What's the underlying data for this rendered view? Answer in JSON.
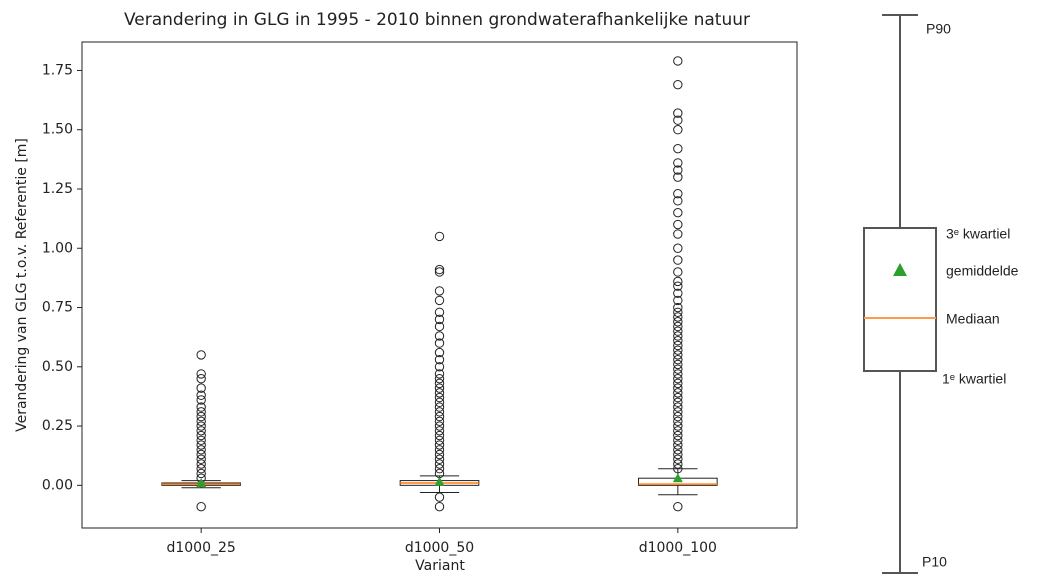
{
  "chart_data": {
    "type": "box",
    "title": "Verandering in GLG in 1995 - 2010 binnen grondwaterafhankelijke natuur",
    "x_label": "Variant",
    "y_label": "Verandering van GLG t.o.v. Referentie [m]",
    "categories": [
      "d1000_25",
      "d1000_50",
      "d1000_100"
    ],
    "boxes": [
      {
        "whislo": -0.01,
        "q1": 0.0,
        "med": 0.005,
        "q3": 0.01,
        "whishi": 0.02,
        "mean": 0.01,
        "fliers": [
          -0.09,
          0.03,
          0.05,
          0.07,
          0.09,
          0.11,
          0.13,
          0.15,
          0.17,
          0.19,
          0.21,
          0.23,
          0.25,
          0.27,
          0.29,
          0.31,
          0.33,
          0.36,
          0.38,
          0.41,
          0.45,
          0.47,
          0.55
        ]
      },
      {
        "whislo": -0.03,
        "q1": 0.0,
        "med": 0.01,
        "q3": 0.02,
        "whishi": 0.04,
        "mean": 0.015,
        "fliers": [
          -0.09,
          -0.05,
          0.05,
          0.07,
          0.09,
          0.11,
          0.13,
          0.15,
          0.17,
          0.19,
          0.21,
          0.23,
          0.25,
          0.27,
          0.29,
          0.31,
          0.33,
          0.35,
          0.37,
          0.39,
          0.41,
          0.43,
          0.45,
          0.47,
          0.5,
          0.53,
          0.56,
          0.6,
          0.63,
          0.67,
          0.7,
          0.73,
          0.78,
          0.82,
          0.9,
          0.91,
          1.05
        ]
      },
      {
        "whislo": -0.04,
        "q1": 0.0,
        "med": 0.005,
        "q3": 0.03,
        "whishi": 0.07,
        "mean": 0.03,
        "fliers": [
          -0.09,
          0.07,
          0.09,
          0.11,
          0.13,
          0.15,
          0.17,
          0.19,
          0.21,
          0.23,
          0.25,
          0.27,
          0.29,
          0.31,
          0.33,
          0.35,
          0.37,
          0.39,
          0.41,
          0.43,
          0.45,
          0.47,
          0.49,
          0.51,
          0.53,
          0.55,
          0.57,
          0.59,
          0.61,
          0.63,
          0.65,
          0.67,
          0.69,
          0.71,
          0.73,
          0.75,
          0.78,
          0.81,
          0.84,
          0.86,
          0.9,
          0.95,
          1.0,
          1.06,
          1.1,
          1.15,
          1.2,
          1.23,
          1.3,
          1.33,
          1.36,
          1.42,
          1.5,
          1.54,
          1.57,
          1.69,
          1.79
        ]
      }
    ],
    "ylim": [
      -0.18,
      1.87
    ],
    "yticks": [
      {
        "value": 0,
        "label": "0.00"
      },
      {
        "value": 0.25,
        "label": "0.25"
      },
      {
        "value": 0.5,
        "label": "0.50"
      },
      {
        "value": 0.75,
        "label": "0.75"
      },
      {
        "value": 1,
        "label": "1.00"
      },
      {
        "value": 1.25,
        "label": "1.25"
      },
      {
        "value": 1.5,
        "label": "1.50"
      },
      {
        "value": 1.75,
        "label": "1.75"
      }
    ],
    "median_color": "#ff7f0e",
    "mean_color": "#2ca02c"
  },
  "legend_key": {
    "p90": "P90",
    "q3": "3ᵉ kwartiel",
    "mean": "gemiddelde",
    "median": "Mediaan",
    "q1": "1ᵉ kwartiel",
    "p10": "P10"
  }
}
